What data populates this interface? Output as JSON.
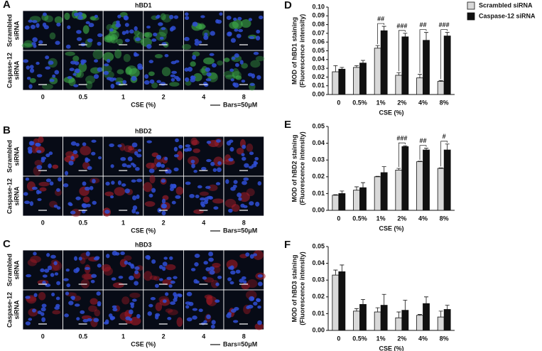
{
  "image_panels": [
    {
      "letter": "A",
      "title": "hBD1",
      "row_labels": [
        [
          "Scrambled",
          "siRNA"
        ],
        [
          "Caspase-12",
          "siRNA"
        ]
      ],
      "columns": [
        "0",
        "0.5",
        "1",
        "2",
        "4",
        "8"
      ],
      "x_label": "CSE (%)",
      "scale_note": "Bars=50μM",
      "stain": "#3fae4a"
    },
    {
      "letter": "B",
      "title": "hBD2",
      "row_labels": [
        [
          "Scrambled",
          "siRNA"
        ],
        [
          "Caspase-12",
          "siRNA"
        ]
      ],
      "columns": [
        "0",
        "0.5",
        "1",
        "2",
        "4",
        "8"
      ],
      "x_label": "CSE (%)",
      "scale_note": "Bars=50μM",
      "stain": "#b3202c"
    },
    {
      "letter": "C",
      "title": "hBD3",
      "row_labels": [
        [
          "Scrambled",
          "siRNA"
        ],
        [
          "Caspase-12",
          "siRNA"
        ]
      ],
      "columns": [
        "0",
        "0.5",
        "1",
        "2",
        "4",
        "8"
      ],
      "x_label": "CSE (%)",
      "scale_note": "Bars=50μM",
      "stain": "#a01a26"
    }
  ],
  "chart_data": [
    {
      "type": "bar",
      "label": "D",
      "y_label": [
        "MOD of hBD1 staining",
        "(Fluorescence intensity)"
      ],
      "x_label": "CSE (%)",
      "categories": [
        "0",
        "0.5%",
        "1%",
        "2%",
        "4%",
        "8%"
      ],
      "series": [
        {
          "name": "Scrambled siRNA",
          "color": "#d9d9d9",
          "values": [
            0.026,
            0.031,
            0.053,
            0.022,
            0.019,
            0.015
          ],
          "errors": [
            0.007,
            0.002,
            0.003,
            0.003,
            0.004,
            0.001
          ]
        },
        {
          "name": "Caspase-12 siRNA",
          "color": "#111111",
          "values": [
            0.029,
            0.036,
            0.073,
            0.066,
            0.062,
            0.067
          ],
          "errors": [
            0.002,
            0.003,
            0.005,
            0.004,
            0.009,
            0.004
          ]
        }
      ],
      "annotations": [
        {
          "x": "1%",
          "text": "##"
        },
        {
          "x": "2%",
          "text": "###"
        },
        {
          "x": "4%",
          "text": "##"
        },
        {
          "x": "8%",
          "text": "###"
        }
      ],
      "ylim": [
        0,
        0.1
      ],
      "yticks": [
        {
          "value": 0,
          "label": "0.00"
        },
        0.01,
        0.02,
        0.03,
        0.04,
        0.05,
        0.06,
        0.07,
        0.08,
        0.09,
        {
          "value": 0.1,
          "label": "0.10"
        }
      ],
      "legend": "right"
    },
    {
      "type": "bar",
      "label": "E",
      "y_label": [
        "MOD of hBD2 staining",
        "(Fluorescence intensity)"
      ],
      "x_label": "CSE (%)",
      "categories": [
        "0",
        "0.5%",
        "1%",
        "2%",
        "4%",
        "8%"
      ],
      "series": [
        {
          "color": "#d9d9d9",
          "values": [
            0.009,
            0.012,
            0.02,
            0.024,
            0.029,
            0.025
          ],
          "errors": [
            0.0003,
            0.002,
            0.0003,
            0.001,
            0.0003,
            0.0003
          ]
        },
        {
          "color": "#111111",
          "values": [
            0.01,
            0.0135,
            0.0225,
            0.038,
            0.036,
            0.036
          ],
          "errors": [
            0.0015,
            0.003,
            0.0035,
            0.0005,
            0.001,
            0.0035
          ]
        }
      ],
      "annotations": [
        {
          "x": "2%",
          "text": "###"
        },
        {
          "x": "4%",
          "text": "##"
        },
        {
          "x": "8%",
          "text": "#"
        }
      ],
      "ylim": [
        0,
        0.05
      ],
      "yticks": [
        {
          "value": 0,
          "label": "0.00"
        },
        0.01,
        0.02,
        0.03,
        0.04,
        0.05
      ]
    },
    {
      "type": "bar",
      "label": "F",
      "y_label": [
        "MOD of hBD3 staining",
        "(Fluorescence intensity)"
      ],
      "x_label": "CSE (%)",
      "categories": [
        "0",
        "0.5%",
        "1%",
        "2%",
        "4%",
        "8%"
      ],
      "series": [
        {
          "color": "#d9d9d9",
          "values": [
            0.033,
            0.0115,
            0.011,
            0.0075,
            0.009,
            0.008
          ],
          "errors": [
            0.003,
            0.0015,
            0.0025,
            0.0035,
            0.0005,
            0.0035
          ]
        },
        {
          "color": "#111111",
          "values": [
            0.035,
            0.0155,
            0.015,
            0.012,
            0.016,
            0.0125
          ],
          "errors": [
            0.004,
            0.003,
            0.0065,
            0.006,
            0.004,
            0.0025
          ]
        }
      ],
      "ylim": [
        0,
        0.05
      ],
      "yticks": [
        {
          "value": 0,
          "label": "0.00"
        },
        0.01,
        0.02,
        0.03,
        0.04,
        0.05
      ]
    }
  ]
}
